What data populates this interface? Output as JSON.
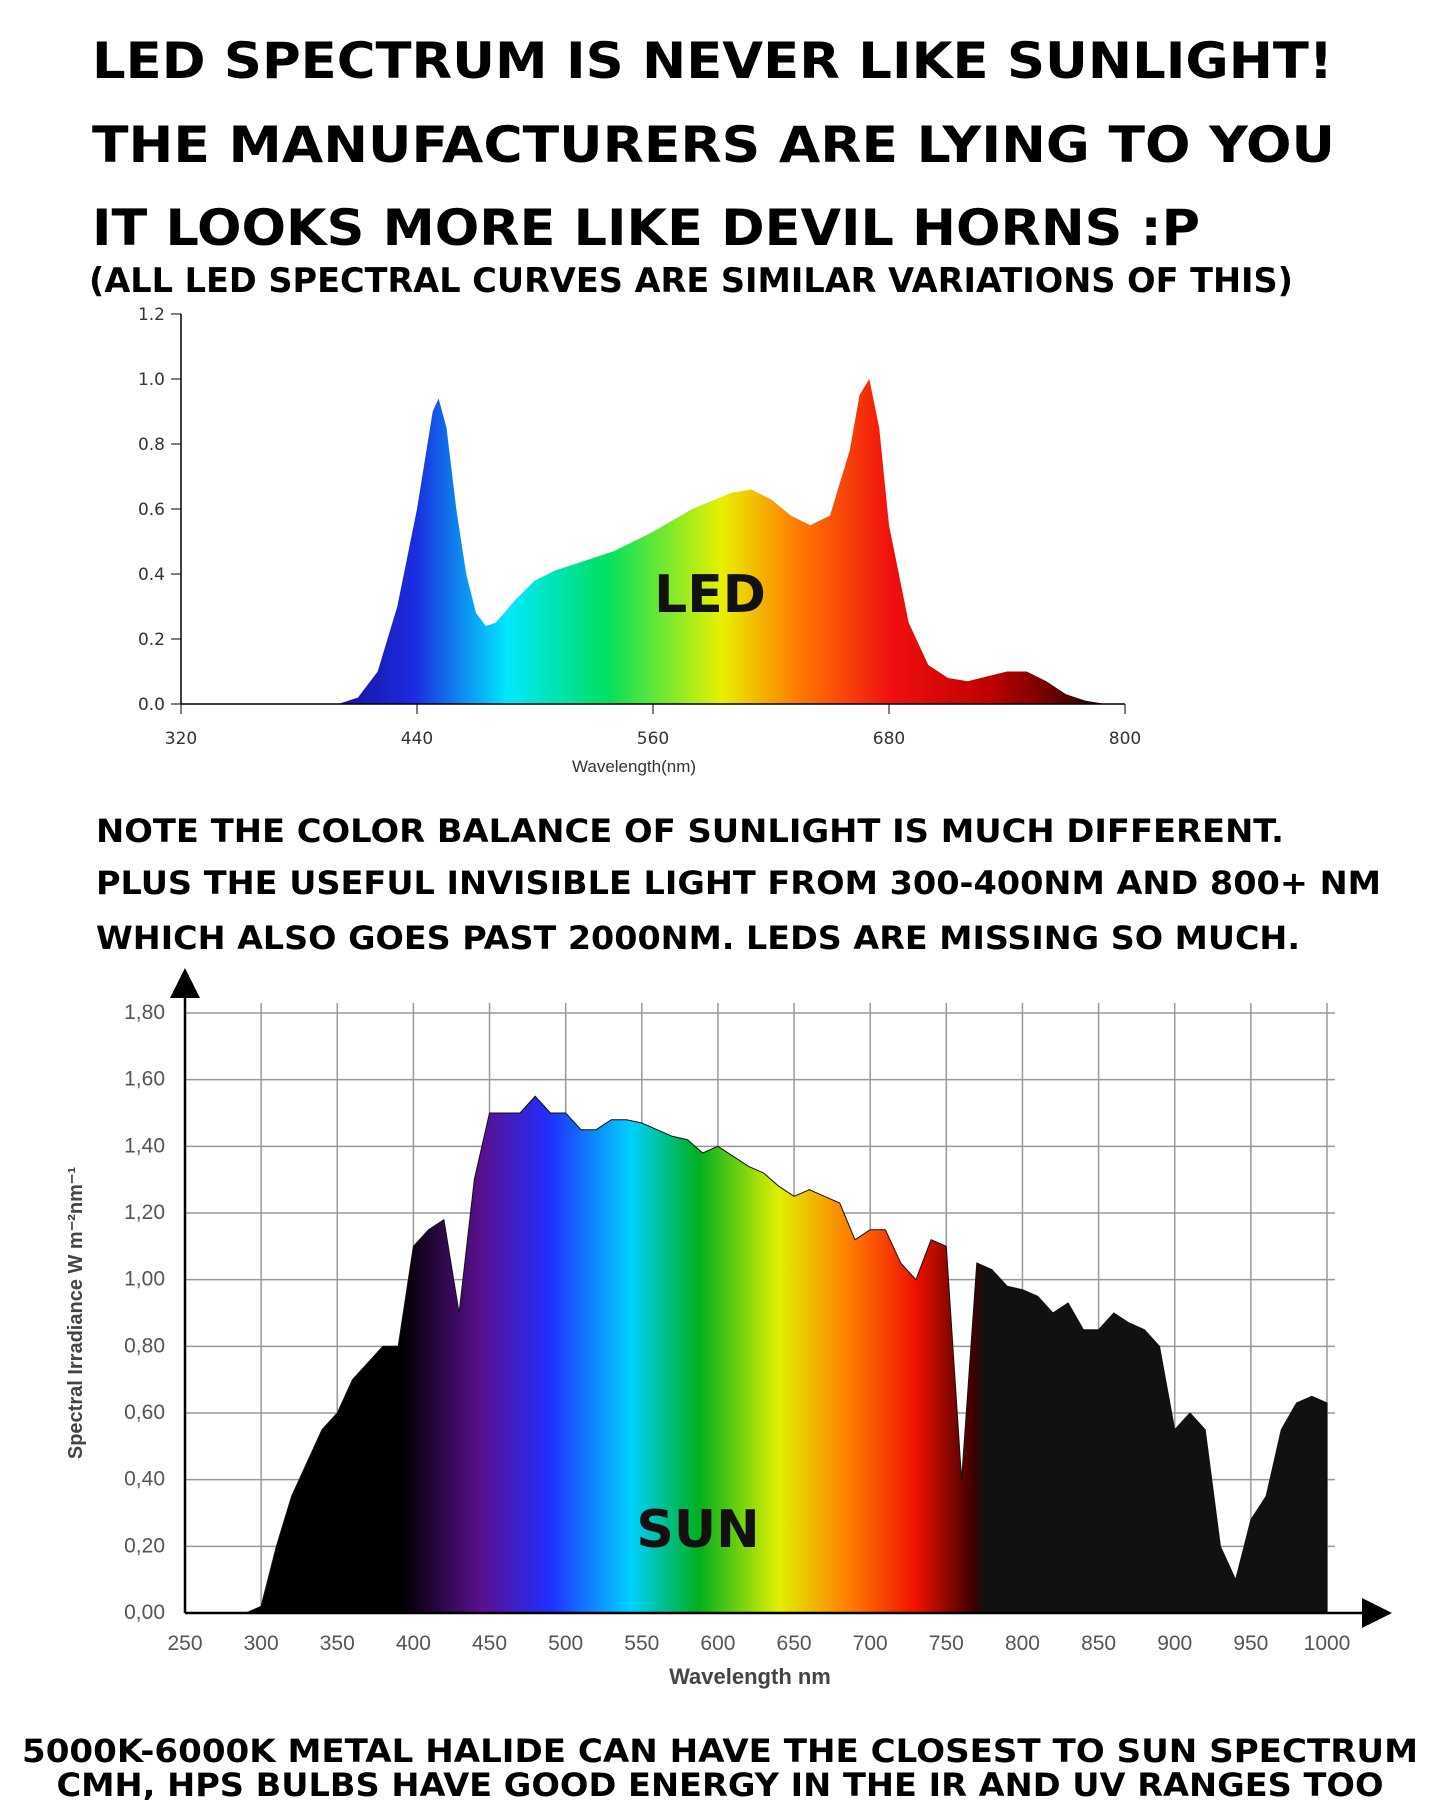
{
  "header": {
    "lines": [
      "LED SPECTRUM IS NEVER LIKE SUNLIGHT!",
      "THE MANUFACTURERS ARE LYING TO YOU",
      "IT LOOKS MORE LIKE DEVIL HORNS :P"
    ],
    "subtitle": "(ALL LED SPECTRAL CURVES ARE SIMILAR VARIATIONS OF THIS)"
  },
  "note": [
    "NOTE THE COLOR BALANCE OF SUNLIGHT IS MUCH DIFFERENT.",
    "PLUS THE USEFUL INVISIBLE LIGHT FROM 300-400NM AND 800+ NM",
    "WHICH ALSO GOES PAST 2000NM. LEDS ARE MISSING SO MUCH."
  ],
  "footer": [
    "5000K-6000K METAL HALIDE CAN HAVE THE CLOSEST TO SUN SPECTRUM",
    "CMH, HPS BULBS HAVE GOOD ENERGY IN THE IR AND UV RANGES TOO"
  ],
  "chart_data": [
    {
      "type": "area",
      "annotation": "LED",
      "x_label": "Wavelength(nm)",
      "x": [
        400,
        410,
        420,
        430,
        440,
        448,
        451,
        455,
        460,
        465,
        470,
        475,
        480,
        490,
        500,
        510,
        520,
        540,
        560,
        580,
        600,
        610,
        620,
        630,
        640,
        650,
        660,
        665,
        670,
        675,
        680,
        690,
        700,
        710,
        720,
        740,
        750,
        760,
        770,
        780,
        790
      ],
      "values": [
        0,
        0.02,
        0.1,
        0.3,
        0.6,
        0.9,
        0.94,
        0.85,
        0.6,
        0.4,
        0.28,
        0.24,
        0.25,
        0.32,
        0.38,
        0.41,
        0.43,
        0.47,
        0.53,
        0.6,
        0.65,
        0.66,
        0.63,
        0.58,
        0.55,
        0.58,
        0.78,
        0.95,
        1.0,
        0.85,
        0.55,
        0.25,
        0.12,
        0.08,
        0.07,
        0.1,
        0.1,
        0.07,
        0.03,
        0.01,
        0
      ],
      "xlim": [
        320,
        800
      ],
      "xticks": [
        320,
        440,
        560,
        680,
        800
      ],
      "ylim": [
        0,
        1.2
      ],
      "yticks": [
        {
          "value": 0,
          "label": "0.0"
        },
        0.2,
        0.4,
        0.6,
        0.8,
        {
          "value": 1,
          "label": "1.0"
        },
        1.2
      ],
      "grid": false
    },
    {
      "type": "area",
      "annotation": "SUN",
      "x_label": "Wavelength nm",
      "y_label": "Spectral Irradiance W m⁻²nm⁻¹",
      "x": [
        290,
        300,
        310,
        320,
        330,
        340,
        350,
        360,
        370,
        380,
        390,
        400,
        410,
        420,
        430,
        440,
        450,
        460,
        470,
        480,
        490,
        500,
        510,
        520,
        530,
        540,
        550,
        560,
        570,
        580,
        590,
        600,
        610,
        620,
        630,
        640,
        650,
        660,
        670,
        680,
        690,
        700,
        710,
        720,
        730,
        740,
        750,
        760,
        770,
        780,
        790,
        800,
        810,
        820,
        830,
        840,
        850,
        860,
        870,
        880,
        890,
        900,
        910,
        920,
        930,
        940,
        950,
        960,
        970,
        980,
        990,
        1000
      ],
      "values": [
        0,
        0.02,
        0.2,
        0.35,
        0.45,
        0.55,
        0.6,
        0.7,
        0.75,
        0.8,
        0.8,
        1.1,
        1.15,
        1.18,
        0.9,
        1.3,
        1.5,
        1.5,
        1.5,
        1.55,
        1.5,
        1.5,
        1.45,
        1.45,
        1.48,
        1.48,
        1.47,
        1.45,
        1.43,
        1.42,
        1.38,
        1.4,
        1.37,
        1.34,
        1.32,
        1.28,
        1.25,
        1.27,
        1.25,
        1.23,
        1.12,
        1.15,
        1.15,
        1.05,
        1.0,
        1.12,
        1.1,
        0.4,
        1.05,
        1.03,
        0.98,
        0.97,
        0.95,
        0.9,
        0.93,
        0.85,
        0.85,
        0.9,
        0.87,
        0.85,
        0.8,
        0.55,
        0.6,
        0.55,
        0.2,
        0.1,
        0.28,
        0.35,
        0.55,
        0.63,
        0.65,
        0.63
      ],
      "xlim": [
        250,
        1000
      ],
      "xticks": [
        250,
        300,
        350,
        400,
        450,
        500,
        550,
        600,
        650,
        700,
        750,
        800,
        850,
        900,
        950,
        1000
      ],
      "ylim": [
        0,
        1.8
      ],
      "yticks": [
        {
          "value": 0,
          "label": "0,00"
        },
        {
          "value": 0.2,
          "label": "0,20"
        },
        {
          "value": 0.4,
          "label": "0,40"
        },
        {
          "value": 0.6,
          "label": "0,60"
        },
        {
          "value": 0.8,
          "label": "0,80"
        },
        {
          "value": 1,
          "label": "1,00"
        },
        {
          "value": 1.2,
          "label": "1,20"
        },
        {
          "value": 1.4,
          "label": "1,40"
        },
        {
          "value": 1.6,
          "label": "1,60"
        },
        {
          "value": 1.8,
          "label": "1,80"
        }
      ],
      "grid": true
    }
  ]
}
